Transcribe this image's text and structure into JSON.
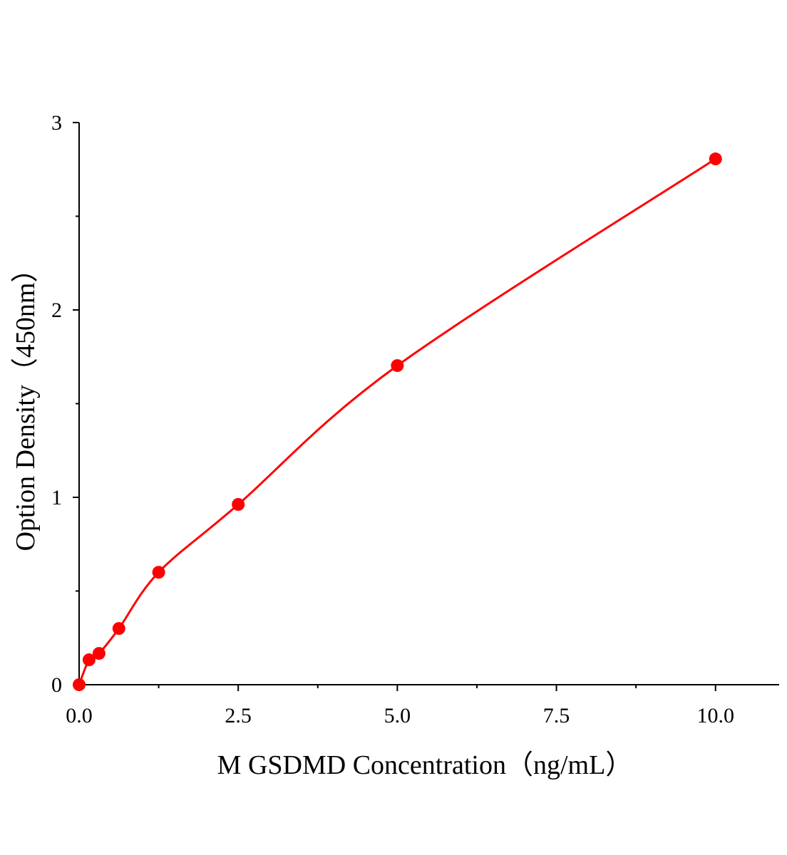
{
  "chart_data": {
    "type": "scatter",
    "title": "",
    "xlabel": "M GSDMD Concentration（ng/mL）",
    "ylabel": "Option Density（450nm）",
    "xlim": [
      0,
      11
    ],
    "ylim": [
      0,
      3
    ],
    "x_ticks": [
      0,
      2.5,
      5,
      7.5,
      10
    ],
    "x_tick_labels": [
      "0.0",
      "2.5",
      "5.0",
      "7.5",
      "10.0"
    ],
    "y_ticks": [
      0,
      1,
      2,
      3
    ],
    "y_tick_labels": [
      "0",
      "1",
      "2",
      "3"
    ],
    "grid": false,
    "color": "#ff0000",
    "series": [
      {
        "x": [
          0,
          0.156,
          0.3125,
          0.625,
          1.25,
          2.5,
          5,
          10
        ],
        "y": [
          0.0,
          0.133,
          0.167,
          0.3,
          0.6,
          0.962,
          1.703,
          2.806
        ],
        "fit_curve": true
      }
    ]
  }
}
